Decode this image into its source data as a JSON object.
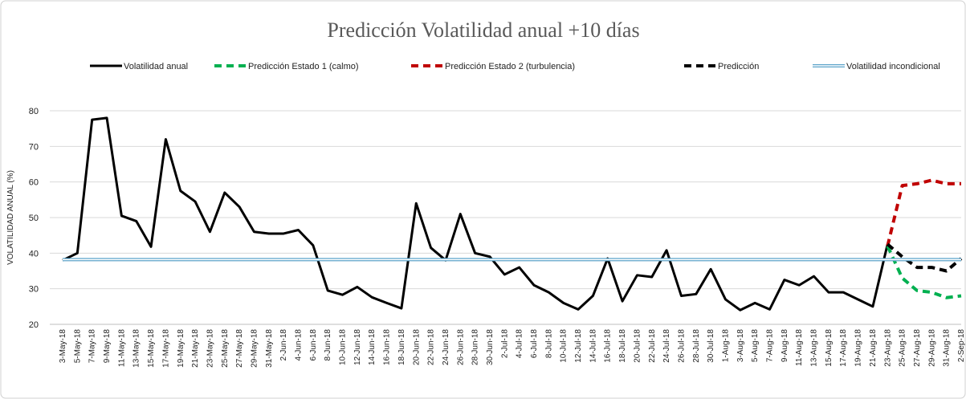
{
  "chart_data": {
    "type": "line",
    "title": "Predicción Volatilidad anual +10 días",
    "y_label": "VOLATILIDAD ANUAL (%)",
    "categories": [
      "3-May-18",
      "5-May-18",
      "7-May-18",
      "9-May-18",
      "11-May-18",
      "13-May-18",
      "15-May-18",
      "17-May-18",
      "19-May-18",
      "21-May-18",
      "23-May-18",
      "25-May-18",
      "27-May-18",
      "29-May-18",
      "31-May-18",
      "2-Jun-18",
      "4-Jun-18",
      "6-Jun-18",
      "8-Jun-18",
      "10-Jun-18",
      "12-Jun-18",
      "14-Jun-18",
      "16-Jun-18",
      "18-Jun-18",
      "20-Jun-18",
      "22-Jun-18",
      "24-Jun-18",
      "26-Jun-18",
      "28-Jun-18",
      "30-Jun-18",
      "2-Jul-18",
      "4-Jul-18",
      "6-Jul-18",
      "8-Jul-18",
      "10-Jul-18",
      "12-Jul-18",
      "14-Jul-18",
      "16-Jul-18",
      "18-Jul-18",
      "20-Jul-18",
      "22-Jul-18",
      "24-Jul-18",
      "26-Jul-18",
      "28-Jul-18",
      "30-Jul-18",
      "1-Aug-18",
      "3-Aug-18",
      "5-Aug-18",
      "7-Aug-18",
      "9-Aug-18",
      "11-Aug-18",
      "13-Aug-18",
      "15-Aug-18",
      "17-Aug-18",
      "19-Aug-18",
      "21-Aug-18",
      "23-Aug-18",
      "25-Aug-18",
      "27-Aug-18",
      "29-Aug-18",
      "31-Aug-18",
      "2-Sep-18"
    ],
    "series": [
      {
        "name": "Volatilidad anual",
        "color": "#000000",
        "dash": "solid",
        "values": [
          38,
          40,
          77.5,
          78,
          50.5,
          49,
          41.8,
          72,
          57.5,
          54.5,
          46,
          57,
          53,
          46,
          45.5,
          45.5,
          46.5,
          42.2,
          29.5,
          28.3,
          30.5,
          27.6,
          26,
          24.5,
          54,
          41.5,
          38,
          51,
          40,
          39,
          34,
          36,
          31,
          29,
          26,
          24.2,
          28,
          38.5,
          26.5,
          33.8,
          33.3,
          40.8,
          28,
          28.5,
          35.5,
          27,
          24,
          26,
          24.2,
          32.5,
          31,
          33.5,
          29,
          29,
          27,
          25,
          42.5,
          null,
          null,
          null,
          null,
          null
        ]
      },
      {
        "name": "Predicción Estado 1 (calmo)",
        "color": "#00b050",
        "dash": "dashed",
        "values": [
          null,
          null,
          null,
          null,
          null,
          null,
          null,
          null,
          null,
          null,
          null,
          null,
          null,
          null,
          null,
          null,
          null,
          null,
          null,
          null,
          null,
          null,
          null,
          null,
          null,
          null,
          null,
          null,
          null,
          null,
          null,
          null,
          null,
          null,
          null,
          null,
          null,
          null,
          null,
          null,
          null,
          null,
          null,
          null,
          null,
          null,
          null,
          null,
          null,
          null,
          null,
          null,
          null,
          null,
          null,
          null,
          42,
          33,
          29.5,
          29,
          27.5,
          28
        ]
      },
      {
        "name": "Predicción Estado 2 (turbulencia)",
        "color": "#c00000",
        "dash": "dashed",
        "values": [
          null,
          null,
          null,
          null,
          null,
          null,
          null,
          null,
          null,
          null,
          null,
          null,
          null,
          null,
          null,
          null,
          null,
          null,
          null,
          null,
          null,
          null,
          null,
          null,
          null,
          null,
          null,
          null,
          null,
          null,
          null,
          null,
          null,
          null,
          null,
          null,
          null,
          null,
          null,
          null,
          null,
          null,
          null,
          null,
          null,
          null,
          null,
          null,
          null,
          null,
          null,
          null,
          null,
          null,
          null,
          null,
          42,
          59,
          59.5,
          60.5,
          59.5,
          59.5
        ]
      },
      {
        "name": "Predicción",
        "color": "#000000",
        "dash": "dashed",
        "values": [
          null,
          null,
          null,
          null,
          null,
          null,
          null,
          null,
          null,
          null,
          null,
          null,
          null,
          null,
          null,
          null,
          null,
          null,
          null,
          null,
          null,
          null,
          null,
          null,
          null,
          null,
          null,
          null,
          null,
          null,
          null,
          null,
          null,
          null,
          null,
          null,
          null,
          null,
          null,
          null,
          null,
          null,
          null,
          null,
          null,
          null,
          null,
          null,
          null,
          null,
          null,
          null,
          null,
          null,
          null,
          null,
          42.5,
          39,
          36,
          36,
          35,
          38.5
        ]
      },
      {
        "name": "Volatilidad incondicional",
        "color": "#5ba3c9",
        "dash": "double",
        "values": [
          38.2,
          38.2,
          38.2,
          38.2,
          38.2,
          38.2,
          38.2,
          38.2,
          38.2,
          38.2,
          38.2,
          38.2,
          38.2,
          38.2,
          38.2,
          38.2,
          38.2,
          38.2,
          38.2,
          38.2,
          38.2,
          38.2,
          38.2,
          38.2,
          38.2,
          38.2,
          38.2,
          38.2,
          38.2,
          38.2,
          38.2,
          38.2,
          38.2,
          38.2,
          38.2,
          38.2,
          38.2,
          38.2,
          38.2,
          38.2,
          38.2,
          38.2,
          38.2,
          38.2,
          38.2,
          38.2,
          38.2,
          38.2,
          38.2,
          38.2,
          38.2,
          38.2,
          38.2,
          38.2,
          38.2,
          38.2,
          38.2,
          38.2,
          38.2,
          38.2,
          38.2,
          38.2
        ]
      }
    ],
    "ylim": [
      20,
      80
    ],
    "yticks": [
      20,
      30,
      40,
      50,
      60,
      70,
      80
    ],
    "grid": true,
    "legend": "top"
  }
}
